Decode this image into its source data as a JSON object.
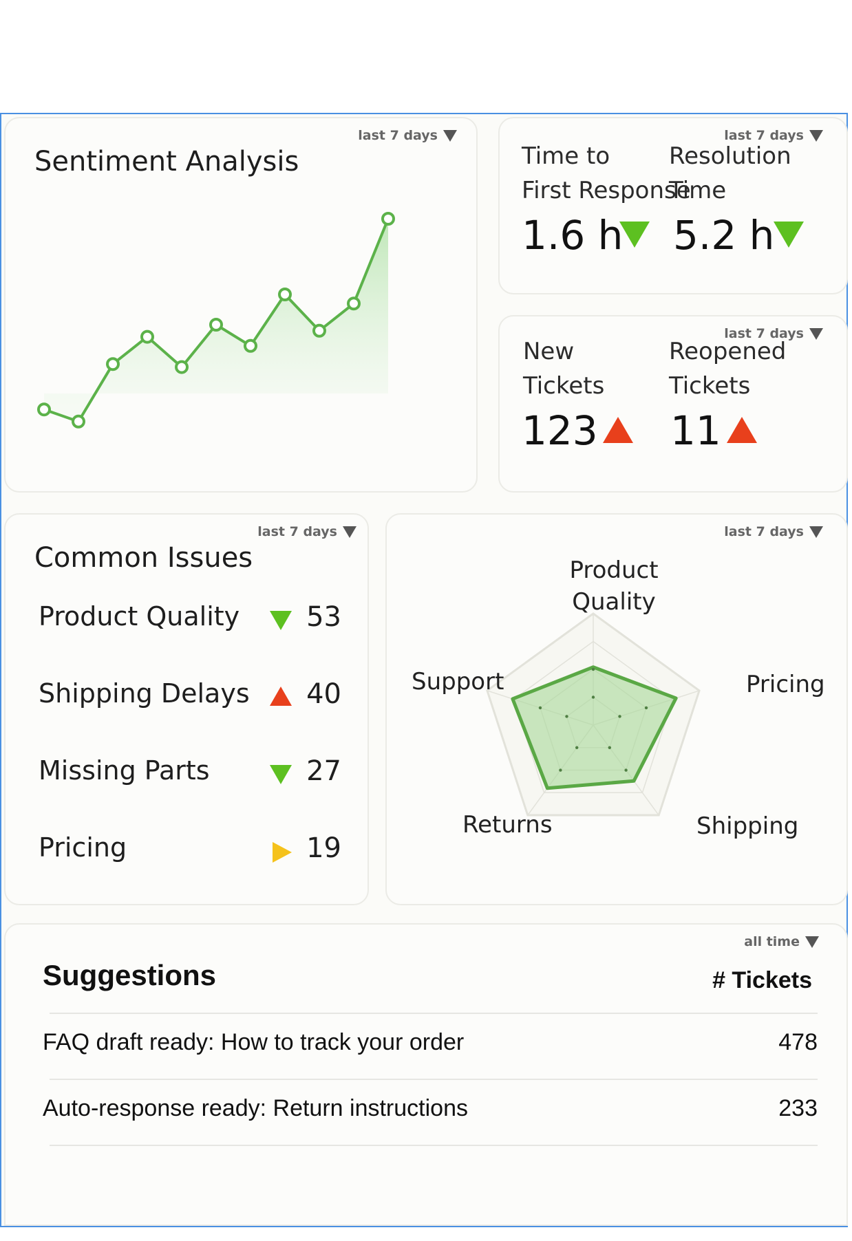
{
  "sentiment": {
    "range": "last 7 days",
    "title": "Sentiment Analysis",
    "chart_data": {
      "type": "line",
      "x": [
        1,
        2,
        3,
        4,
        5,
        6,
        7,
        8,
        9,
        10,
        11
      ],
      "values": [
        0.22,
        0.18,
        0.37,
        0.46,
        0.36,
        0.5,
        0.43,
        0.6,
        0.48,
        0.57,
        0.85
      ],
      "ylim": [
        0,
        1
      ],
      "series": [
        {
          "values": [
            0.22,
            0.18,
            0.37,
            0.46,
            0.36,
            0.5,
            0.43,
            0.6,
            0.48,
            0.57,
            0.85
          ]
        }
      ],
      "color": "#5cb24a",
      "fill": "area-gradient"
    }
  },
  "response": {
    "range": "last 7 days",
    "first_label_1": "Time to",
    "first_label_2": "First Response",
    "first_value": "1.6 h",
    "first_trend": "down",
    "res_label_1": "Resolution",
    "res_label_2": "Time",
    "res_value": "5.2 h",
    "res_trend": "down"
  },
  "tickets": {
    "range": "last 7 days",
    "new_label_1": "New",
    "new_label_2": "Tickets",
    "new_value": "123",
    "new_trend": "up",
    "reopened_label_1": "Reopened",
    "reopened_label_2": "Tickets",
    "reopened_value": "11",
    "reopened_trend": "up"
  },
  "issues": {
    "range": "last 7 days",
    "title": "Common Issues",
    "rows": [
      {
        "label": "Product Quality",
        "trend": "down",
        "count": "53"
      },
      {
        "label": "Shipping Delays",
        "trend": "up",
        "count": "40"
      },
      {
        "label": "Missing Parts",
        "trend": "down",
        "count": "27"
      },
      {
        "label": "Pricing",
        "trend": "flat",
        "count": "19"
      }
    ]
  },
  "radar": {
    "range": "last 7 days",
    "label_product_1": "Product",
    "label_product_2": "Quality",
    "label_pricing": "Pricing",
    "label_shipping": "Shipping",
    "label_returns": "Returns",
    "label_support": "Support",
    "chart_data": {
      "type": "radar",
      "axes": [
        "Product Quality",
        "Pricing",
        "Shipping",
        "Returns",
        "Support"
      ],
      "values": [
        0.52,
        0.78,
        0.62,
        0.7,
        0.76
      ],
      "max": 1,
      "color": "#5aa845"
    }
  },
  "suggestions": {
    "range": "all time",
    "title": "Suggestions",
    "col_header": "# Tickets",
    "rows": [
      {
        "text": "FAQ draft ready: How to track your order",
        "count": "478"
      },
      {
        "text": "Auto-response ready: Return instructions",
        "count": "233"
      }
    ]
  },
  "colors": {
    "accent_green": "#5dc021",
    "alert_red": "#e8401c",
    "neutral_yellow": "#f5c21b",
    "frame_blue": "#4a90e2"
  }
}
